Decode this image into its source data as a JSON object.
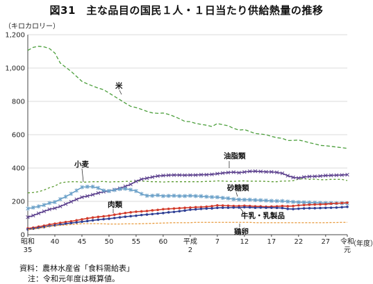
{
  "title": "図31　主な品目の国民１人・１日当たり供給熱量の推移",
  "footnotes": {
    "source": "資料：農林水産省「食料需給表」",
    "note": "注：令和元年度は概算値。"
  },
  "chart_data": {
    "type": "line",
    "title": "図31　主な品目の国民１人・１日当たり供給熱量の推移",
    "ylabel": "（キロカロリー）",
    "xlabel": "（年度）",
    "ylim": [
      0,
      1200
    ],
    "yticks": [
      "0",
      "200",
      "400",
      "600",
      "800",
      "1,000",
      "1,200"
    ],
    "x_ticks": [
      {
        "label": "昭和\n35",
        "x": 1960
      },
      {
        "label": "40",
        "x": 1965
      },
      {
        "label": "45",
        "x": 1970
      },
      {
        "label": "50",
        "x": 1975
      },
      {
        "label": "55",
        "x": 1980
      },
      {
        "label": "60",
        "x": 1985
      },
      {
        "label": "平成\n2",
        "x": 1990
      },
      {
        "label": "7",
        "x": 1995
      },
      {
        "label": "12",
        "x": 2000
      },
      {
        "label": "17",
        "x": 2005
      },
      {
        "label": "22",
        "x": 2010
      },
      {
        "label": "27",
        "x": 2015
      },
      {
        "label": "令和\n元",
        "x": 2019
      }
    ],
    "grid": true,
    "x": [
      1960,
      1961,
      1962,
      1963,
      1964,
      1965,
      1966,
      1967,
      1968,
      1969,
      1970,
      1971,
      1972,
      1973,
      1974,
      1975,
      1976,
      1977,
      1978,
      1979,
      1980,
      1981,
      1982,
      1983,
      1984,
      1985,
      1986,
      1987,
      1988,
      1989,
      1990,
      1991,
      1992,
      1993,
      1994,
      1995,
      1996,
      1997,
      1998,
      1999,
      2000,
      2001,
      2002,
      2003,
      2004,
      2005,
      2006,
      2007,
      2008,
      2009,
      2010,
      2011,
      2012,
      2013,
      2014,
      2015,
      2016,
      2017,
      2018,
      2019
    ],
    "series": [
      {
        "name": "米",
        "color": "#4a9e3a",
        "dash": "5,3",
        "marker": "none",
        "values": [
          1106,
          1124,
          1131,
          1127,
          1117,
          1090,
          1030,
          1005,
          980,
          950,
          920,
          905,
          892,
          880,
          870,
          850,
          830,
          810,
          790,
          770,
          763,
          752,
          740,
          731,
          728,
          730,
          722,
          710,
          696,
          680,
          678,
          668,
          662,
          657,
          649,
          667,
          660,
          654,
          638,
          628,
          631,
          619,
          607,
          604,
          600,
          590,
          582,
          578,
          565,
          566,
          568,
          561,
          552,
          545,
          536,
          534,
          530,
          526,
          522,
          518
        ]
      },
      {
        "name": "小麦",
        "color": "#5a9a30",
        "dash": "3,3",
        "marker": "none",
        "values": [
          251,
          253,
          258,
          268,
          282,
          292,
          310,
          316,
          318,
          318,
          315,
          316,
          318,
          318,
          320,
          316,
          318,
          318,
          320,
          320,
          321,
          322,
          320,
          318,
          318,
          316,
          318,
          318,
          318,
          318,
          318,
          318,
          318,
          320,
          320,
          323,
          322,
          320,
          320,
          322,
          323,
          321,
          321,
          321,
          320,
          318,
          318,
          322,
          322,
          324,
          334,
          336,
          332,
          333,
          330,
          330,
          332,
          332,
          332,
          325
        ]
      },
      {
        "name": "油脂類",
        "color": "#5a3e8c",
        "dash": "",
        "marker": "cross",
        "values": [
          105,
          115,
          128,
          140,
          152,
          159,
          170,
          184,
          198,
          212,
          225,
          232,
          240,
          250,
          258,
          262,
          270,
          278,
          290,
          302,
          320,
          333,
          339,
          346,
          352,
          355,
          357,
          358,
          358,
          357,
          358,
          358,
          360,
          360,
          362,
          366,
          370,
          373,
          375,
          372,
          376,
          380,
          381,
          379,
          377,
          377,
          374,
          368,
          354,
          344,
          340,
          346,
          349,
          350,
          352,
          355,
          356,
          357,
          358,
          360
        ]
      },
      {
        "name": "砂糖類",
        "color": "#6aa0c8",
        "dash": "",
        "marker": "star",
        "values": [
          157,
          163,
          170,
          178,
          190,
          196,
          213,
          228,
          246,
          265,
          285,
          288,
          288,
          280,
          265,
          262,
          268,
          274,
          276,
          270,
          262,
          245,
          234,
          234,
          237,
          232,
          233,
          234,
          232,
          232,
          234,
          232,
          231,
          228,
          226,
          225,
          221,
          218,
          213,
          211,
          210,
          210,
          208,
          207,
          205,
          203,
          202,
          202,
          199,
          197,
          195,
          194,
          193,
          192,
          191,
          190,
          190,
          189,
          189,
          188
        ]
      },
      {
        "name": "肉類",
        "color": "#d23a2a",
        "dash": "",
        "marker": "dot",
        "values": [
          38,
          42,
          48,
          54,
          61,
          66,
          71,
          76,
          80,
          86,
          92,
          98,
          103,
          107,
          110,
          114,
          120,
          125,
          130,
          134,
          138,
          140,
          142,
          146,
          149,
          153,
          155,
          157,
          159,
          161,
          163,
          165,
          166,
          168,
          171,
          176,
          175,
          174,
          172,
          172,
          174,
          172,
          170,
          170,
          168,
          169,
          170,
          172,
          171,
          172,
          176,
          178,
          180,
          181,
          182,
          183,
          186,
          188,
          190,
          192
        ]
      },
      {
        "name": "牛乳・乳製品",
        "color": "#2e3f94",
        "dash": "",
        "marker": "dot",
        "values": [
          32,
          36,
          41,
          46,
          52,
          56,
          61,
          66,
          70,
          74,
          78,
          82,
          86,
          90,
          93,
          96,
          100,
          104,
          108,
          111,
          114,
          118,
          121,
          124,
          127,
          130,
          134,
          137,
          141,
          145,
          150,
          152,
          155,
          157,
          158,
          161,
          162,
          162,
          163,
          163,
          165,
          164,
          162,
          163,
          162,
          162,
          161,
          160,
          155,
          154,
          156,
          158,
          159,
          159,
          160,
          161,
          162,
          163,
          165,
          167
        ]
      },
      {
        "name": "鶏卵",
        "color": "#e89a3c",
        "dash": "3,2",
        "marker": "none",
        "values": [
          30,
          34,
          38,
          44,
          50,
          54,
          56,
          58,
          61,
          63,
          66,
          66,
          66,
          66,
          65,
          64,
          64,
          64,
          65,
          65,
          65,
          66,
          67,
          68,
          69,
          70,
          71,
          72,
          72,
          72,
          72,
          74,
          74,
          74,
          74,
          74,
          74,
          74,
          74,
          74,
          74,
          74,
          72,
          72,
          72,
          72,
          72,
          72,
          72,
          72,
          72,
          72,
          72,
          72,
          72,
          72,
          73,
          73,
          74,
          74
        ]
      }
    ],
    "series_labels": [
      "米",
      "小麦",
      "油脂類",
      "砂糖類",
      "肉類",
      "牛乳・乳製品",
      "鶏卵"
    ]
  }
}
